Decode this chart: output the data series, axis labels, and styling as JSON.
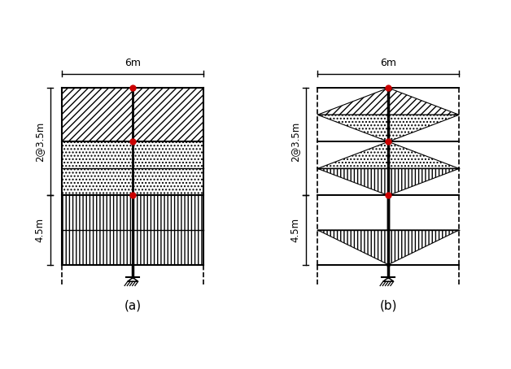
{
  "fig_width": 6.28,
  "fig_height": 4.54,
  "dpi": 100,
  "bg_color": "#ffffff",
  "red_dot_color": "#cc0000",
  "label_a": "(a)",
  "label_b": "(b)",
  "dim_6m": "6m",
  "dim_2at35": "2@3.5m",
  "dim_45": "4.5m"
}
